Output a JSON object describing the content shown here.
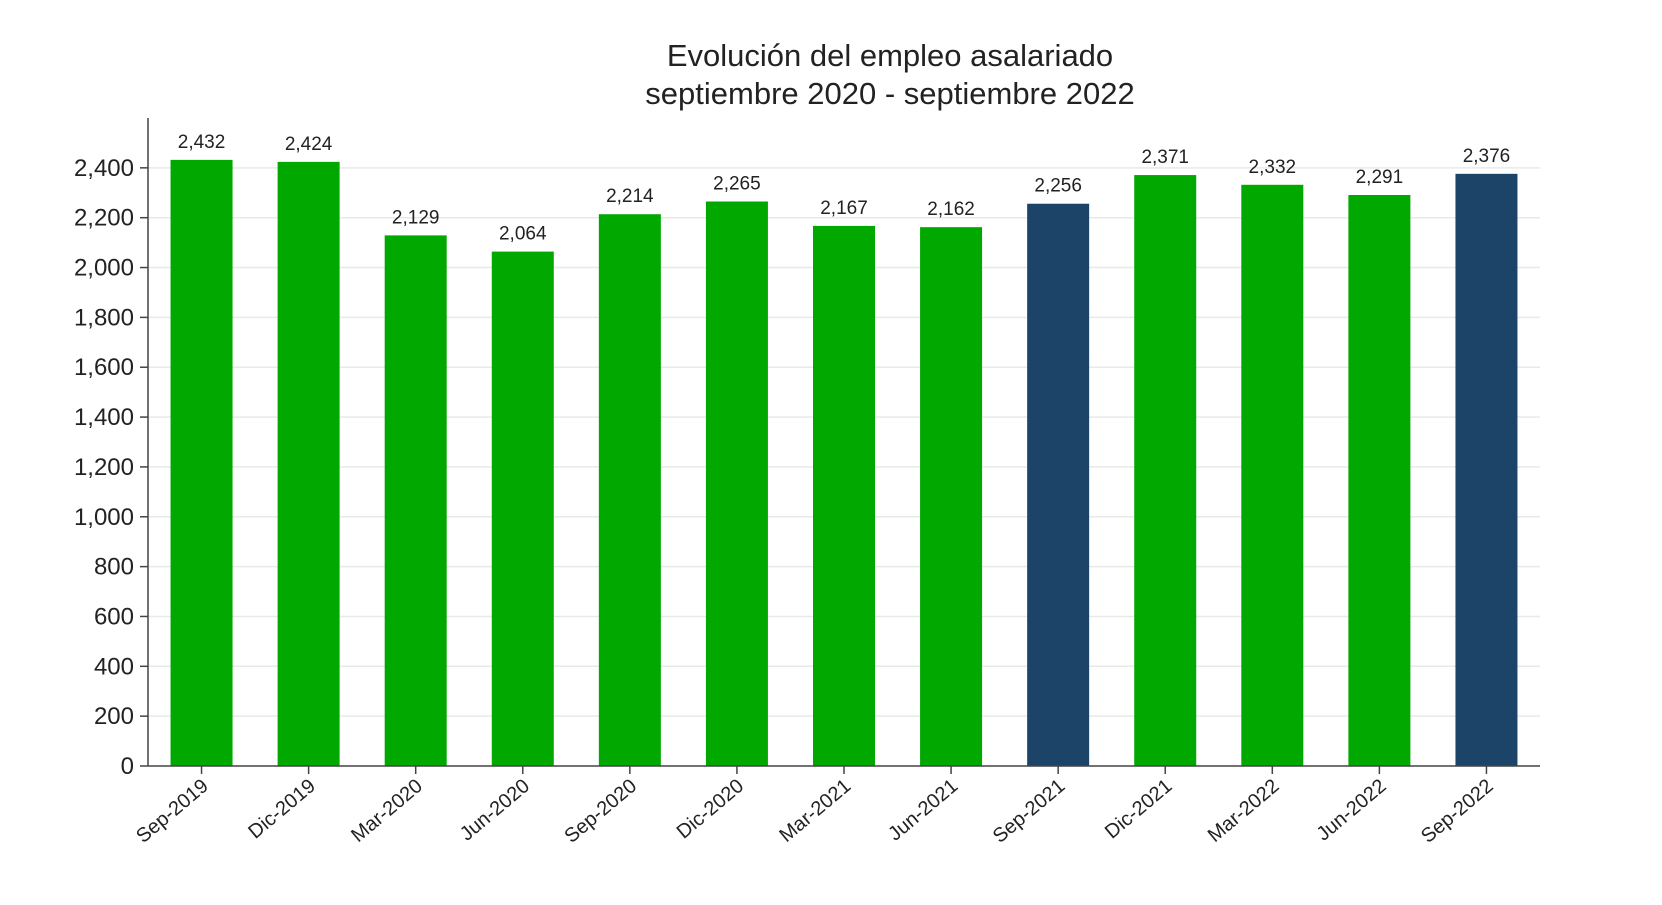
{
  "chart_data": {
    "type": "bar",
    "title": "Evolución del empleo asalariado",
    "subtitle": "septiembre 2020 - septiembre 2022",
    "xlabel": "",
    "ylabel": "",
    "categories": [
      "Sep-2019",
      "Dic-2019",
      "Mar-2020",
      "Jun-2020",
      "Sep-2020",
      "Dic-2020",
      "Mar-2021",
      "Jun-2021",
      "Sep-2021",
      "Dic-2021",
      "Mar-2022",
      "Jun-2022",
      "Sep-2022"
    ],
    "values": [
      2432,
      2424,
      2129,
      2064,
      2214,
      2265,
      2167,
      2162,
      2256,
      2371,
      2332,
      2291,
      2376
    ],
    "value_labels": [
      "2,432",
      "2,424",
      "2,129",
      "2,064",
      "2,214",
      "2,265",
      "2,167",
      "2,162",
      "2,256",
      "2,371",
      "2,332",
      "2,291",
      "2,376"
    ],
    "bar_colors": [
      "#00a800",
      "#00a800",
      "#00a800",
      "#00a800",
      "#00a800",
      "#00a800",
      "#00a800",
      "#00a800",
      "#1c4468",
      "#00a800",
      "#00a800",
      "#00a800",
      "#1c4468"
    ],
    "ylim": [
      0,
      2600
    ],
    "yticks": [
      0,
      200,
      400,
      600,
      800,
      1000,
      1200,
      1400,
      1600,
      1800,
      2000,
      2200,
      2400
    ],
    "ytick_labels": [
      "0",
      "200",
      "400",
      "600",
      "800",
      "1,000",
      "1,200",
      "1,400",
      "1,600",
      "1,800",
      "2,000",
      "2,200",
      "2,400"
    ],
    "grid": true,
    "legend": "none",
    "colors": {
      "primary": "#00a800",
      "highlight": "#1c4468",
      "grid": "#e6ebe6",
      "axis": "#444444"
    }
  }
}
